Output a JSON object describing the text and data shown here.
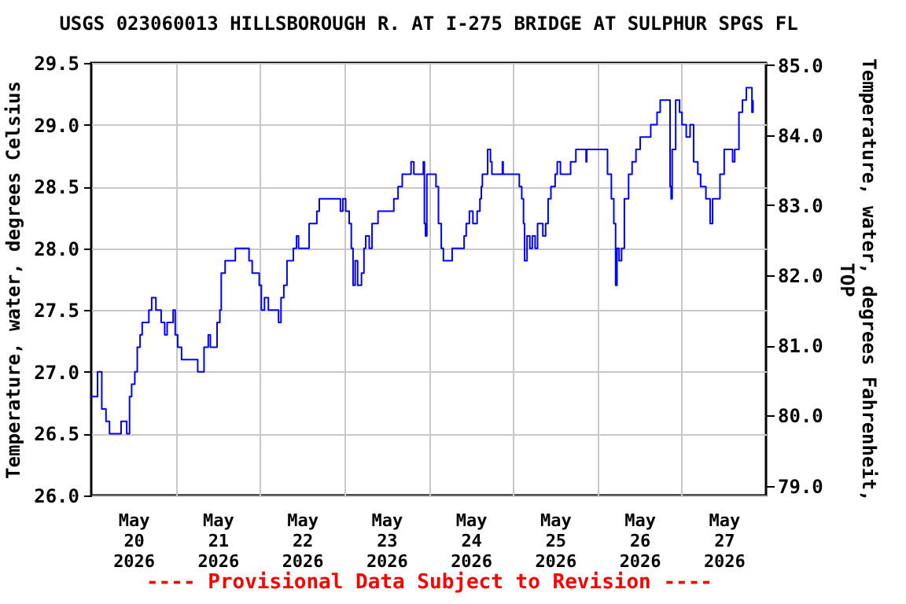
{
  "chart_data": {
    "type": "step",
    "title": "USGS 023060013 HILLSBOROUGH R. AT I-275 BRIDGE AT SULPHUR SPGS FL",
    "ylabel": "Temperature, water, degrees Celsius",
    "y2label": "Temperature, water, degrees Fahrenheit, TOP",
    "annotations": [
      "---- Provisional Data Subject to Revision ----"
    ],
    "x": [
      "2026-05-20T00:00",
      "2026-05-20T01:48",
      "2026-05-20T03:00",
      "2026-05-20T04:12",
      "2026-05-20T05:12",
      "2026-05-20T07:54",
      "2026-05-20T08:30",
      "2026-05-20T09:42",
      "2026-05-20T10:06",
      "2026-05-20T10:54",
      "2026-05-20T11:30",
      "2026-05-20T12:24",
      "2026-05-20T13:06",
      "2026-05-20T13:54",
      "2026-05-20T14:30",
      "2026-05-20T15:42",
      "2026-05-20T16:24",
      "2026-05-20T17:12",
      "2026-05-20T17:54",
      "2026-05-20T18:24",
      "2026-05-20T19:54",
      "2026-05-20T20:54",
      "2026-05-20T21:36",
      "2026-05-20T22:48",
      "2026-05-20T23:18",
      "2026-05-20T23:54",
      "2026-05-21T00:36",
      "2026-05-21T01:42",
      "2026-05-21T05:54",
      "2026-05-21T06:18",
      "2026-05-21T07:18",
      "2026-05-21T08:06",
      "2026-05-21T09:18",
      "2026-05-21T09:54",
      "2026-05-21T11:06",
      "2026-05-21T11:48",
      "2026-05-21T12:36",
      "2026-05-21T13:00",
      "2026-05-21T14:06",
      "2026-05-21T16:36",
      "2026-05-21T17:00",
      "2026-05-21T20:18",
      "2026-05-21T20:54",
      "2026-05-21T21:48",
      "2026-05-21T23:00",
      "2026-05-21T23:48",
      "2026-05-22T00:24",
      "2026-05-22T01:18",
      "2026-05-22T02:24",
      "2026-05-22T04:42",
      "2026-05-22T05:18",
      "2026-05-22T06:00",
      "2026-05-22T06:48",
      "2026-05-22T07:42",
      "2026-05-22T08:42",
      "2026-05-22T09:30",
      "2026-05-22T10:24",
      "2026-05-22T11:00",
      "2026-05-22T12:48",
      "2026-05-22T14:00",
      "2026-05-22T15:24",
      "2026-05-22T16:12",
      "2026-05-22T16:54",
      "2026-05-22T22:36",
      "2026-05-22T22:54",
      "2026-05-22T23:36",
      "2026-05-23T00:24",
      "2026-05-23T01:24",
      "2026-05-23T02:00",
      "2026-05-23T02:30",
      "2026-05-23T03:06",
      "2026-05-23T03:48",
      "2026-05-23T04:54",
      "2026-05-23T05:36",
      "2026-05-23T06:06",
      "2026-05-23T07:06",
      "2026-05-23T07:54",
      "2026-05-23T09:00",
      "2026-05-23T09:36",
      "2026-05-23T13:30",
      "2026-05-23T14:06",
      "2026-05-23T15:18",
      "2026-05-23T16:30",
      "2026-05-23T17:36",
      "2026-05-23T19:00",
      "2026-05-23T19:48",
      "2026-05-23T22:00",
      "2026-05-23T22:30",
      "2026-05-23T22:48",
      "2026-05-23T23:06",
      "2026-05-23T23:30",
      "2026-05-24T01:30",
      "2026-05-24T02:06",
      "2026-05-24T02:48",
      "2026-05-24T03:36",
      "2026-05-24T04:12",
      "2026-05-24T06:12",
      "2026-05-24T06:42",
      "2026-05-24T09:30",
      "2026-05-24T10:06",
      "2026-05-24T10:42",
      "2026-05-24T11:36",
      "2026-05-24T12:36",
      "2026-05-24T13:30",
      "2026-05-24T13:48",
      "2026-05-24T14:36",
      "2026-05-24T15:00",
      "2026-05-24T15:18",
      "2026-05-24T16:48",
      "2026-05-24T17:36",
      "2026-05-24T18:00",
      "2026-05-24T20:48",
      "2026-05-24T21:00",
      "2026-05-24T21:12",
      "2026-05-25T01:00",
      "2026-05-25T01:48",
      "2026-05-25T02:30",
      "2026-05-25T03:00",
      "2026-05-25T03:18",
      "2026-05-25T04:00",
      "2026-05-25T04:48",
      "2026-05-25T05:30",
      "2026-05-25T06:18",
      "2026-05-25T07:00",
      "2026-05-25T08:30",
      "2026-05-25T09:18",
      "2026-05-25T10:00",
      "2026-05-25T10:48",
      "2026-05-25T12:00",
      "2026-05-25T12:36",
      "2026-05-25T13:30",
      "2026-05-25T15:12",
      "2026-05-25T16:24",
      "2026-05-25T17:54",
      "2026-05-25T20:36",
      "2026-05-25T20:48",
      "2026-05-25T21:00",
      "2026-05-26T02:00",
      "2026-05-26T02:54",
      "2026-05-26T04:00",
      "2026-05-26T04:42",
      "2026-05-26T05:12",
      "2026-05-26T05:36",
      "2026-05-26T06:12",
      "2026-05-26T06:54",
      "2026-05-26T07:42",
      "2026-05-26T08:54",
      "2026-05-26T09:54",
      "2026-05-26T11:00",
      "2026-05-26T12:12",
      "2026-05-26T13:42",
      "2026-05-26T15:12",
      "2026-05-26T17:00",
      "2026-05-26T17:54",
      "2026-05-26T20:24",
      "2026-05-26T20:42",
      "2026-05-26T21:00",
      "2026-05-26T21:18",
      "2026-05-26T22:18",
      "2026-05-26T23:24",
      "2026-05-27T00:06",
      "2026-05-27T01:18",
      "2026-05-27T02:24",
      "2026-05-27T03:24",
      "2026-05-27T04:36",
      "2026-05-27T05:24",
      "2026-05-27T06:54",
      "2026-05-27T08:06",
      "2026-05-27T08:48",
      "2026-05-27T10:18",
      "2026-05-27T10:54",
      "2026-05-27T12:06",
      "2026-05-27T13:36",
      "2026-05-27T14:30",
      "2026-05-27T15:06",
      "2026-05-27T16:18",
      "2026-05-27T17:18",
      "2026-05-27T18:24",
      "2026-05-27T19:36",
      "2026-05-27T20:00",
      "2026-05-27T20:18"
    ],
    "series": [
      {
        "color": "#0000ff",
        "values": [
          26.8,
          27.0,
          26.7,
          26.6,
          26.5,
          26.5,
          26.6,
          26.6,
          26.5,
          26.8,
          26.9,
          27.0,
          27.2,
          27.3,
          27.4,
          27.4,
          27.5,
          27.6,
          27.6,
          27.5,
          27.4,
          27.3,
          27.4,
          27.4,
          27.5,
          27.3,
          27.2,
          27.1,
          27.1,
          27.0,
          27.0,
          27.2,
          27.3,
          27.2,
          27.2,
          27.4,
          27.5,
          27.8,
          27.9,
          27.9,
          28.0,
          28.0,
          27.9,
          27.8,
          27.8,
          27.7,
          27.5,
          27.6,
          27.5,
          27.5,
          27.4,
          27.6,
          27.7,
          27.9,
          27.9,
          28.0,
          28.1,
          28.0,
          28.0,
          28.2,
          28.2,
          28.3,
          28.4,
          28.4,
          28.3,
          28.4,
          28.3,
          28.2,
          28.0,
          27.7,
          27.9,
          27.7,
          27.8,
          28.0,
          28.1,
          28.0,
          28.2,
          28.2,
          28.3,
          28.3,
          28.4,
          28.5,
          28.6,
          28.6,
          28.7,
          28.6,
          28.6,
          28.7,
          28.2,
          28.1,
          28.6,
          28.6,
          28.5,
          28.2,
          28.0,
          27.9,
          27.9,
          28.0,
          28.0,
          28.1,
          28.2,
          28.3,
          28.2,
          28.2,
          28.3,
          28.4,
          28.5,
          28.6,
          28.8,
          28.7,
          28.6,
          28.6,
          28.7,
          28.6,
          28.6,
          28.5,
          28.4,
          28.2,
          27.9,
          28.1,
          28.0,
          28.1,
          28.0,
          28.2,
          28.1,
          28.2,
          28.4,
          28.5,
          28.6,
          28.7,
          28.6,
          28.6,
          28.7,
          28.8,
          28.8,
          28.7,
          28.8,
          28.8,
          28.6,
          28.4,
          28.2,
          27.7,
          28.0,
          27.9,
          28.0,
          28.4,
          28.6,
          28.7,
          28.8,
          28.9,
          28.9,
          29.0,
          29.1,
          29.2,
          29.2,
          28.5,
          28.4,
          28.8,
          29.2,
          29.1,
          29.0,
          28.9,
          29.0,
          28.7,
          28.6,
          28.5,
          28.4,
          28.2,
          28.4,
          28.4,
          28.6,
          28.8,
          28.8,
          28.7,
          28.8,
          29.1,
          29.2,
          29.3,
          29.3,
          29.1,
          29.2
        ]
      }
    ],
    "xlim": [
      "2026-05-20T00:00",
      "2026-05-28T00:00"
    ],
    "xticks": [
      {
        "value": "2026-05-20T12:00",
        "label": "May 20 2026"
      },
      {
        "value": "2026-05-21T00:00",
        "label": null
      },
      {
        "value": "2026-05-21T12:00",
        "label": "May 21 2026"
      },
      {
        "value": "2026-05-22T00:00",
        "label": null
      },
      {
        "value": "2026-05-22T12:00",
        "label": "May 22 2026"
      },
      {
        "value": "2026-05-23T00:00",
        "label": null
      },
      {
        "value": "2026-05-23T12:00",
        "label": "May 23 2026"
      },
      {
        "value": "2026-05-24T00:00",
        "label": null
      },
      {
        "value": "2026-05-24T12:00",
        "label": "May 24 2026"
      },
      {
        "value": "2026-05-25T00:00",
        "label": null
      },
      {
        "value": "2026-05-25T12:00",
        "label": "May 25 2026"
      },
      {
        "value": "2026-05-26T00:00",
        "label": null
      },
      {
        "value": "2026-05-26T12:00",
        "label": "May 26 2026"
      },
      {
        "value": "2026-05-27T00:00",
        "label": null
      },
      {
        "value": "2026-05-27T12:00",
        "label": "May 27 2026"
      }
    ],
    "ylim": [
      26.0,
      29.5
    ],
    "yticks": [
      {
        "value": 26,
        "label": "26.0"
      },
      {
        "value": 26.5,
        "label": "26.5"
      },
      {
        "value": 27,
        "label": "27.0"
      },
      {
        "value": 27.5,
        "label": "27.5"
      },
      {
        "value": 28,
        "label": "28.0"
      },
      {
        "value": 28.5,
        "label": "28.5"
      },
      {
        "value": 29,
        "label": "29.0"
      },
      {
        "value": 29.5,
        "label": "29.5"
      }
    ],
    "y2lim": [
      78.86,
      85.03
    ],
    "y2ticks": [
      {
        "value": 79,
        "label": "79.0"
      },
      {
        "value": 80,
        "label": "80.0"
      },
      {
        "value": 81,
        "label": "81.0"
      },
      {
        "value": 82,
        "label": "82.0"
      },
      {
        "value": 83,
        "label": "83.0"
      },
      {
        "value": 84,
        "label": "84.0"
      },
      {
        "value": 85,
        "label": "85.0"
      }
    ],
    "grid": true,
    "legend": false
  }
}
